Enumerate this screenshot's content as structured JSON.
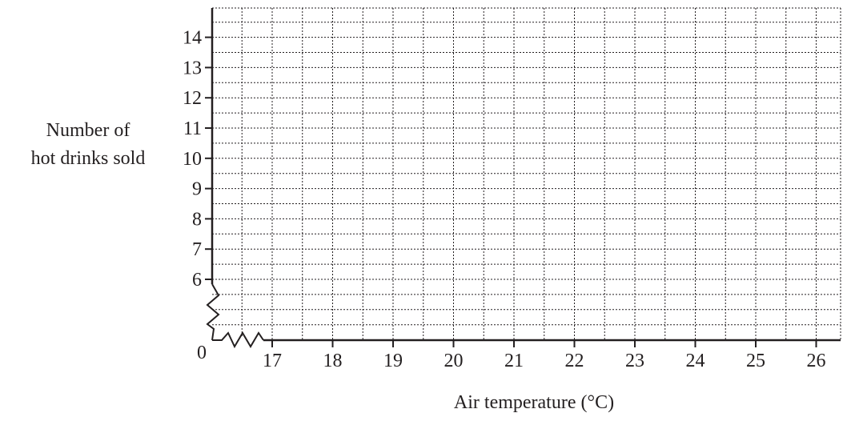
{
  "chart_data": {
    "type": "scatter",
    "title": "",
    "xlabel": "Air temperature (°C)",
    "ylabel_lines": [
      "Number of",
      "hot drinks sold"
    ],
    "origin_label": "0",
    "x_ticks": [
      17,
      18,
      19,
      20,
      21,
      22,
      23,
      24,
      25,
      26
    ],
    "y_ticks": [
      6,
      7,
      8,
      9,
      10,
      11,
      12,
      13,
      14
    ],
    "xlim": [
      16,
      26.4
    ],
    "ylim": [
      4,
      15
    ],
    "x_minor_step": 0.5,
    "y_minor_step": 0.5,
    "axis_breaks": true,
    "grid": true,
    "points": []
  }
}
